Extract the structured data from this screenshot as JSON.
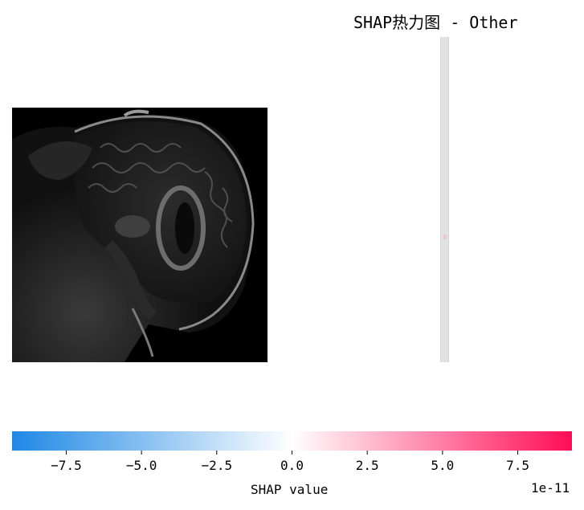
{
  "chart_data": {
    "type": "heatmap",
    "title": "SHAP热力图 - Other",
    "colorbar": {
      "label": "SHAP value",
      "offset_text": "1e-11",
      "range": [
        -9.3,
        9.3
      ],
      "ticks": [
        -7.5,
        -5.0,
        -2.5,
        0.0,
        2.5,
        5.0,
        7.5
      ],
      "tick_labels": [
        "−7.5",
        "−5.0",
        "−2.5",
        "0.0",
        "2.5",
        "5.0",
        "7.5"
      ],
      "colors": {
        "negative": "#1e88e5",
        "zero": "#ffffff",
        "positive": "#ff0d57"
      }
    },
    "panels": [
      {
        "kind": "image",
        "content": "sagittal brain MRI"
      },
      {
        "kind": "shap_overlay",
        "value_level": "near zero"
      }
    ]
  }
}
